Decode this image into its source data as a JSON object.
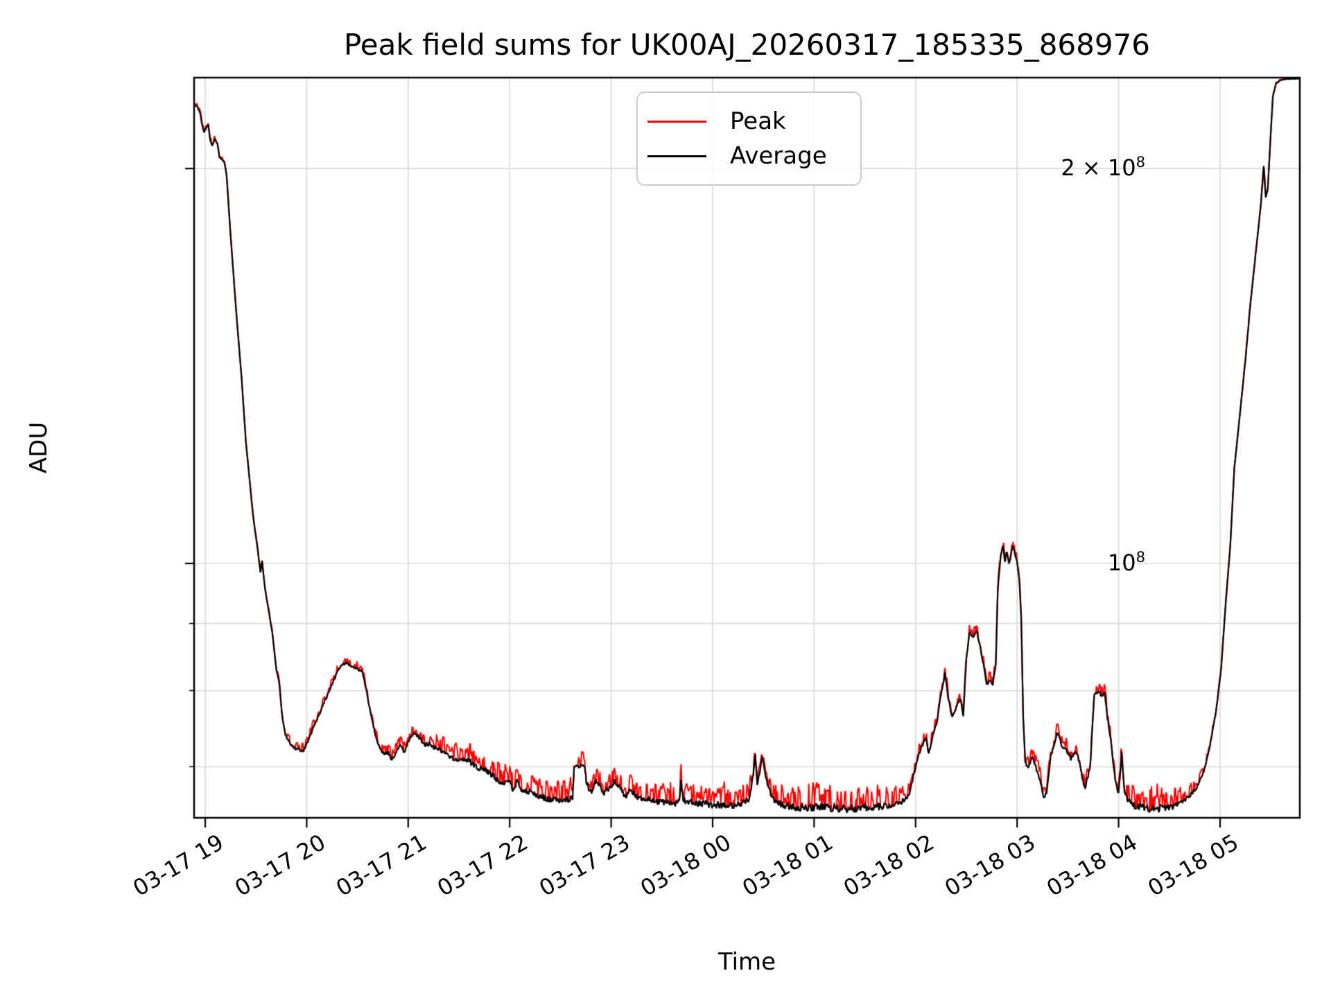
{
  "figure": {
    "title": "Peak field sums for UK00AJ_20260317_185335_868976",
    "xlabel": "Time",
    "ylabel": "ADU",
    "legend": [
      {
        "name": "Peak",
        "color": "#ff0000"
      },
      {
        "name": "Average",
        "color": "#000000"
      }
    ]
  },
  "style": {
    "peak_color": "#ff0000",
    "average_color": "#000000",
    "grid_color": "#d9d9d9",
    "spine_color": "#000000",
    "legend_border": "#cccccc",
    "background": "#ffffff"
  },
  "chart_data": {
    "type": "line",
    "title": "Peak field sums for UK00AJ_20260317_185335_868976",
    "xlabel": "Time",
    "ylabel": "ADU",
    "yscale": "log",
    "grid": "both",
    "legend_position": "upper center",
    "value_scale": 100000000,
    "ylim": [
      0.64,
      2.345
    ],
    "xlim_hours": [
      18.893,
      29.787
    ],
    "x_axis_note": "hours counted from 03-17 00:00; values >= 24 fall on 03-18",
    "x_ticks": [
      {
        "hour": 19,
        "label": "03-17 19"
      },
      {
        "hour": 20,
        "label": "03-17 20"
      },
      {
        "hour": 21,
        "label": "03-17 21"
      },
      {
        "hour": 22,
        "label": "03-17 22"
      },
      {
        "hour": 23,
        "label": "03-17 23"
      },
      {
        "hour": 24,
        "label": "03-18 00"
      },
      {
        "hour": 25,
        "label": "03-18 01"
      },
      {
        "hour": 26,
        "label": "03-18 02"
      },
      {
        "hour": 27,
        "label": "03-18 03"
      },
      {
        "hour": 28,
        "label": "03-18 04"
      },
      {
        "hour": 29,
        "label": "03-18 05"
      }
    ],
    "y_major_ticks": [
      {
        "value": 2.0,
        "base": "2 × 10",
        "exp": "8"
      },
      {
        "value": 1.0,
        "base": "10",
        "exp": "8"
      }
    ],
    "y_minor_gridlines": [
      0.7,
      0.8,
      0.9
    ],
    "series_names": [
      "Peak",
      "Average"
    ],
    "points_format": [
      "hour",
      "average_value_in_1e8_ADU",
      "peak_spike_amplitude_fraction"
    ],
    "points": [
      [
        18.893,
        2.235,
        0.004
      ],
      [
        18.92,
        2.23,
        0.004
      ],
      [
        18.95,
        2.205,
        0.004
      ],
      [
        18.97,
        2.16,
        0.006
      ],
      [
        18.99,
        2.13,
        0.008
      ],
      [
        19.01,
        2.15,
        0.004
      ],
      [
        19.03,
        2.16,
        0.003
      ],
      [
        19.05,
        2.1,
        0.005
      ],
      [
        19.07,
        2.08,
        0.005
      ],
      [
        19.09,
        2.105,
        0.004
      ],
      [
        19.12,
        2.09,
        0.004
      ],
      [
        19.14,
        2.04,
        0.004
      ],
      [
        19.17,
        2.03,
        0.004
      ],
      [
        19.19,
        2.02,
        0.004
      ],
      [
        19.21,
        1.98,
        0.003
      ],
      [
        19.25,
        1.78,
        0.002
      ],
      [
        19.31,
        1.54,
        0.002
      ],
      [
        19.36,
        1.38,
        0.002
      ],
      [
        19.4,
        1.24,
        0.002
      ],
      [
        19.47,
        1.09,
        0.003
      ],
      [
        19.52,
        1.02,
        0.003
      ],
      [
        19.545,
        0.985,
        0.004
      ],
      [
        19.56,
        1.005,
        0.003
      ],
      [
        19.59,
        0.956,
        0.003
      ],
      [
        19.66,
        0.887,
        0.004
      ],
      [
        19.7,
        0.832,
        0.005
      ],
      [
        19.73,
        0.81,
        0.005
      ],
      [
        19.76,
        0.762,
        0.006
      ],
      [
        19.79,
        0.74,
        0.007
      ],
      [
        19.83,
        0.731,
        0.008
      ],
      [
        19.86,
        0.725,
        0.009
      ],
      [
        19.92,
        0.721,
        0.01
      ],
      [
        19.97,
        0.72,
        0.01
      ],
      [
        20.02,
        0.734,
        0.008
      ],
      [
        20.09,
        0.757,
        0.008
      ],
      [
        20.13,
        0.77,
        0.008
      ],
      [
        20.17,
        0.783,
        0.008
      ],
      [
        20.21,
        0.795,
        0.008
      ],
      [
        20.26,
        0.812,
        0.008
      ],
      [
        20.3,
        0.826,
        0.008
      ],
      [
        20.35,
        0.837,
        0.008
      ],
      [
        20.4,
        0.84,
        0.008
      ],
      [
        20.46,
        0.833,
        0.008
      ],
      [
        20.51,
        0.83,
        0.008
      ],
      [
        20.55,
        0.826,
        0.008
      ],
      [
        20.58,
        0.806,
        0.006
      ],
      [
        20.62,
        0.776,
        0.006
      ],
      [
        20.66,
        0.75,
        0.008
      ],
      [
        20.69,
        0.734,
        0.01
      ],
      [
        20.73,
        0.721,
        0.012
      ],
      [
        20.77,
        0.715,
        0.014
      ],
      [
        20.8,
        0.718,
        0.012
      ],
      [
        20.84,
        0.709,
        0.014
      ],
      [
        20.89,
        0.721,
        0.012
      ],
      [
        20.93,
        0.727,
        0.01
      ],
      [
        20.96,
        0.718,
        0.012
      ],
      [
        21.01,
        0.734,
        0.01
      ],
      [
        21.06,
        0.743,
        0.01
      ],
      [
        21.1,
        0.738,
        0.012
      ],
      [
        21.17,
        0.727,
        0.014
      ],
      [
        21.21,
        0.729,
        0.014
      ],
      [
        21.25,
        0.724,
        0.015
      ],
      [
        21.31,
        0.721,
        0.016
      ],
      [
        21.36,
        0.716,
        0.017
      ],
      [
        21.41,
        0.712,
        0.018
      ],
      [
        21.45,
        0.709,
        0.018
      ],
      [
        21.5,
        0.706,
        0.018
      ],
      [
        21.55,
        0.709,
        0.018
      ],
      [
        21.6,
        0.706,
        0.02
      ],
      [
        21.64,
        0.703,
        0.02
      ],
      [
        21.72,
        0.697,
        0.02
      ],
      [
        21.79,
        0.694,
        0.02
      ],
      [
        21.83,
        0.69,
        0.02
      ],
      [
        21.87,
        0.685,
        0.02
      ],
      [
        21.94,
        0.681,
        0.022
      ],
      [
        22.0,
        0.685,
        0.022
      ],
      [
        22.03,
        0.672,
        0.02
      ],
      [
        22.08,
        0.684,
        0.022
      ],
      [
        22.12,
        0.672,
        0.02
      ],
      [
        22.16,
        0.671,
        0.02
      ],
      [
        22.23,
        0.668,
        0.022
      ],
      [
        22.31,
        0.664,
        0.022
      ],
      [
        22.38,
        0.662,
        0.022
      ],
      [
        22.45,
        0.661,
        0.022
      ],
      [
        22.52,
        0.659,
        0.022
      ],
      [
        22.58,
        0.661,
        0.022
      ],
      [
        22.62,
        0.662,
        0.02
      ],
      [
        22.635,
        0.7,
        0.018
      ],
      [
        22.74,
        0.7,
        0.018
      ],
      [
        22.755,
        0.683,
        0.018
      ],
      [
        22.78,
        0.673,
        0.018
      ],
      [
        22.82,
        0.67,
        0.018
      ],
      [
        22.85,
        0.685,
        0.02
      ],
      [
        22.89,
        0.676,
        0.018
      ],
      [
        22.93,
        0.668,
        0.018
      ],
      [
        22.96,
        0.672,
        0.018
      ],
      [
        23.0,
        0.676,
        0.018
      ],
      [
        23.04,
        0.683,
        0.02
      ],
      [
        23.08,
        0.676,
        0.018
      ],
      [
        23.11,
        0.669,
        0.018
      ],
      [
        23.15,
        0.665,
        0.018
      ],
      [
        23.18,
        0.674,
        0.02
      ],
      [
        23.23,
        0.668,
        0.018
      ],
      [
        23.26,
        0.662,
        0.018
      ],
      [
        23.32,
        0.662,
        0.02
      ],
      [
        23.39,
        0.661,
        0.02
      ],
      [
        23.47,
        0.658,
        0.022
      ],
      [
        23.57,
        0.657,
        0.022
      ],
      [
        23.63,
        0.656,
        0.022
      ],
      [
        23.67,
        0.658,
        0.02
      ],
      [
        23.69,
        0.683,
        0.022
      ],
      [
        23.71,
        0.66,
        0.02
      ],
      [
        23.81,
        0.657,
        0.022
      ],
      [
        23.91,
        0.656,
        0.024
      ],
      [
        24.0,
        0.655,
        0.024
      ],
      [
        24.08,
        0.654,
        0.024
      ],
      [
        24.18,
        0.654,
        0.024
      ],
      [
        24.28,
        0.656,
        0.022
      ],
      [
        24.36,
        0.661,
        0.018
      ],
      [
        24.4,
        0.69,
        0.015
      ],
      [
        24.42,
        0.717,
        0.012
      ],
      [
        24.44,
        0.676,
        0.015
      ],
      [
        24.49,
        0.712,
        0.012
      ],
      [
        24.52,
        0.69,
        0.015
      ],
      [
        24.54,
        0.68,
        0.016
      ],
      [
        24.58,
        0.663,
        0.018
      ],
      [
        24.63,
        0.657,
        0.02
      ],
      [
        24.73,
        0.654,
        0.024
      ],
      [
        24.83,
        0.652,
        0.026
      ],
      [
        24.94,
        0.651,
        0.026
      ],
      [
        25.04,
        0.652,
        0.026
      ],
      [
        25.17,
        0.651,
        0.026
      ],
      [
        25.31,
        0.65,
        0.026
      ],
      [
        25.45,
        0.651,
        0.026
      ],
      [
        25.58,
        0.652,
        0.026
      ],
      [
        25.72,
        0.654,
        0.024
      ],
      [
        25.82,
        0.657,
        0.022
      ],
      [
        25.88,
        0.66,
        0.02
      ],
      [
        25.93,
        0.664,
        0.015
      ],
      [
        25.97,
        0.684,
        0.012
      ],
      [
        26.02,
        0.71,
        0.01
      ],
      [
        26.06,
        0.725,
        0.01
      ],
      [
        26.1,
        0.737,
        0.01
      ],
      [
        26.13,
        0.716,
        0.012
      ],
      [
        26.17,
        0.74,
        0.01
      ],
      [
        26.21,
        0.757,
        0.01
      ],
      [
        26.25,
        0.795,
        0.01
      ],
      [
        26.29,
        0.824,
        0.01
      ],
      [
        26.32,
        0.79,
        0.012
      ],
      [
        26.36,
        0.764,
        0.012
      ],
      [
        26.4,
        0.777,
        0.01
      ],
      [
        26.44,
        0.79,
        0.01
      ],
      [
        26.47,
        0.766,
        0.012
      ],
      [
        26.5,
        0.846,
        0.01
      ],
      [
        26.53,
        0.886,
        0.008
      ],
      [
        26.57,
        0.878,
        0.01
      ],
      [
        26.6,
        0.89,
        0.008
      ],
      [
        26.64,
        0.862,
        0.01
      ],
      [
        26.7,
        0.81,
        0.012
      ],
      [
        26.73,
        0.813,
        0.01
      ],
      [
        26.76,
        0.808,
        0.01
      ],
      [
        26.79,
        0.838,
        0.008
      ],
      [
        26.81,
        0.955,
        0.008
      ],
      [
        26.84,
        1.016,
        0.008
      ],
      [
        26.86,
        1.031,
        0.008
      ],
      [
        26.88,
        1.004,
        0.01
      ],
      [
        26.9,
        1.022,
        0.008
      ],
      [
        26.92,
        0.998,
        0.01
      ],
      [
        26.96,
        1.033,
        0.008
      ],
      [
        26.98,
        1.017,
        0.008
      ],
      [
        27.0,
        1.001,
        0.008
      ],
      [
        27.02,
        0.976,
        0.008
      ],
      [
        27.04,
        0.91,
        0.008
      ],
      [
        27.06,
        0.764,
        0.01
      ],
      [
        27.08,
        0.705,
        0.012
      ],
      [
        27.11,
        0.7,
        0.012
      ],
      [
        27.15,
        0.712,
        0.012
      ],
      [
        27.18,
        0.7,
        0.014
      ],
      [
        27.21,
        0.69,
        0.014
      ],
      [
        27.24,
        0.678,
        0.015
      ],
      [
        27.26,
        0.662,
        0.016
      ],
      [
        27.29,
        0.669,
        0.015
      ],
      [
        27.33,
        0.711,
        0.013
      ],
      [
        27.37,
        0.729,
        0.012
      ],
      [
        27.4,
        0.744,
        0.012
      ],
      [
        27.44,
        0.726,
        0.013
      ],
      [
        27.49,
        0.72,
        0.014
      ],
      [
        27.53,
        0.71,
        0.014
      ],
      [
        27.58,
        0.718,
        0.014
      ],
      [
        27.62,
        0.704,
        0.015
      ],
      [
        27.65,
        0.682,
        0.016
      ],
      [
        27.67,
        0.673,
        0.016
      ],
      [
        27.72,
        0.7,
        0.014
      ],
      [
        27.76,
        0.795,
        0.01
      ],
      [
        27.81,
        0.8,
        0.01
      ],
      [
        27.83,
        0.79,
        0.011
      ],
      [
        27.86,
        0.8,
        0.01
      ],
      [
        27.89,
        0.763,
        0.012
      ],
      [
        27.93,
        0.727,
        0.013
      ],
      [
        27.96,
        0.69,
        0.015
      ],
      [
        28.0,
        0.668,
        0.016
      ],
      [
        28.03,
        0.717,
        0.016
      ],
      [
        28.06,
        0.668,
        0.018
      ],
      [
        28.1,
        0.659,
        0.022
      ],
      [
        28.15,
        0.654,
        0.026
      ],
      [
        28.26,
        0.651,
        0.028
      ],
      [
        28.36,
        0.65,
        0.028
      ],
      [
        28.46,
        0.651,
        0.026
      ],
      [
        28.56,
        0.654,
        0.024
      ],
      [
        28.63,
        0.659,
        0.018
      ],
      [
        28.7,
        0.665,
        0.014
      ],
      [
        28.77,
        0.675,
        0.01
      ],
      [
        28.84,
        0.694,
        0.008
      ],
      [
        28.9,
        0.726,
        0.006
      ],
      [
        28.96,
        0.771,
        0.005
      ],
      [
        29.01,
        0.83,
        0.004
      ],
      [
        29.05,
        0.92,
        0.004
      ],
      [
        29.1,
        1.03,
        0.004
      ],
      [
        29.14,
        1.18,
        0.003
      ],
      [
        29.18,
        1.265,
        0.003
      ],
      [
        29.25,
        1.43,
        0.003
      ],
      [
        29.3,
        1.58,
        0.003
      ],
      [
        29.35,
        1.72,
        0.003
      ],
      [
        29.4,
        1.87,
        0.003
      ],
      [
        29.43,
        2.01,
        0.006
      ],
      [
        29.45,
        1.9,
        0.003
      ],
      [
        29.47,
        1.93,
        0.003
      ],
      [
        29.5,
        2.13,
        0.002
      ],
      [
        29.52,
        2.27,
        0.002
      ],
      [
        29.55,
        2.32,
        0.002
      ],
      [
        29.59,
        2.335,
        0.002
      ],
      [
        29.66,
        2.34,
        0.002
      ],
      [
        29.787,
        2.342,
        0.002
      ]
    ]
  }
}
